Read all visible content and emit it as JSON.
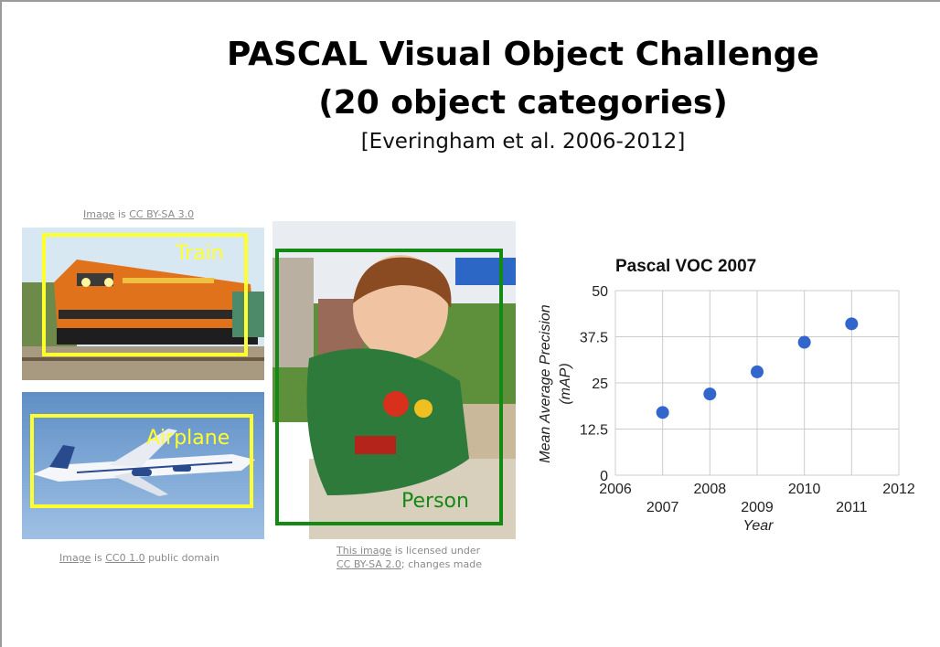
{
  "slide": {
    "title_line1": "PASCAL Visual Object Challenge",
    "title_line2": "(20 object categories)",
    "citation": "[Everingham et al. 2006-2012]"
  },
  "photos": {
    "train": {
      "label": "Train",
      "credit": {
        "link1": "Image",
        "mid": " is ",
        "link2": "CC BY-SA 3.0"
      }
    },
    "airplane": {
      "label": "Airplane",
      "credit": {
        "link1": "Image",
        "mid": " is ",
        "link2": "CC0 1.0",
        "tail": " public domain"
      }
    },
    "person": {
      "label": "Person",
      "credit": {
        "link1": "This image",
        "mid": " is licensed under",
        "link2": "CC BY-SA 2.0",
        "tail": "; changes made"
      }
    }
  },
  "colors": {
    "yellow_box": "#ffff2e",
    "green_box": "#138a13",
    "marker": "#3366cc",
    "grid": "#cccccc"
  },
  "chart_data": {
    "type": "scatter",
    "title": "Pascal VOC 2007",
    "xlabel": "Year",
    "ylabel_line1": "Mean Average Precision",
    "ylabel_line2": "(mAP)",
    "xlim": [
      2006,
      2012
    ],
    "ylim": [
      0,
      50
    ],
    "x_ticks_top": [
      "2006",
      "2008",
      "2010",
      "2012"
    ],
    "x_ticks_bottom": [
      "2007",
      "2009",
      "2011"
    ],
    "y_ticks": [
      "0",
      "12.5",
      "25",
      "37.5",
      "50"
    ],
    "x": [
      2007,
      2008,
      2009,
      2010,
      2011
    ],
    "y": [
      17,
      22,
      28,
      36,
      41
    ],
    "grid": true,
    "legend": "none"
  }
}
